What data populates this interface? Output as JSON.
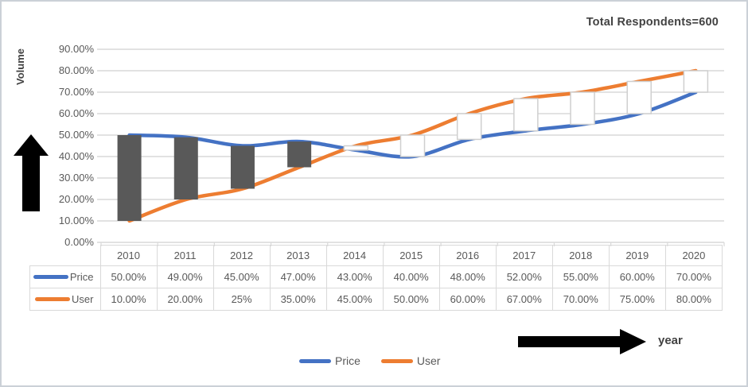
{
  "title": "Total Respondents=600",
  "y_axis_title": "Volume",
  "x_axis_title": "year",
  "chart_data": {
    "type": "line",
    "title": "Total Respondents=600",
    "xlabel": "year",
    "ylabel": "Volume",
    "categories": [
      "2010",
      "2011",
      "2012",
      "2013",
      "2014",
      "2015",
      "2016",
      "2017",
      "2018",
      "2019",
      "2020"
    ],
    "series": [
      {
        "name": "Price",
        "color": "#4472C4",
        "values": [
          50,
          49,
          45,
          47,
          43,
          40,
          48,
          52,
          55,
          60,
          70
        ]
      },
      {
        "name": "User",
        "color": "#ED7D31",
        "values": [
          10,
          20,
          25,
          35,
          45,
          50,
          60,
          67,
          70,
          75,
          80
        ]
      }
    ],
    "ylim": [
      0,
      90
    ],
    "ytick_step": 10,
    "ytick_format": "0.00%",
    "grid": "horizontal-only",
    "smooth_lines": true,
    "updown_bars": true,
    "legend_position": "bottom",
    "colors": {
      "gridline": "#d9d9d9",
      "down_bar_fill": "#595959",
      "up_bar_fill": "#ffffff",
      "up_bar_border": "#cfcfcf",
      "axis_text": "#595959",
      "arrow": "#000000"
    }
  },
  "data_table": {
    "columns": [
      "2010",
      "2011",
      "2012",
      "2013",
      "2014",
      "2015",
      "2016",
      "2017",
      "2018",
      "2019",
      "2020"
    ],
    "rows": [
      {
        "label": "Price",
        "color": "#4472C4",
        "values": [
          "50.00%",
          "49.00%",
          "45.00%",
          "47.00%",
          "43.00%",
          "40.00%",
          "48.00%",
          "52.00%",
          "55.00%",
          "60.00%",
          "70.00%"
        ]
      },
      {
        "label": "User",
        "color": "#ED7D31",
        "values": [
          "10.00%",
          "20.00%",
          "25%",
          "35.00%",
          "45.00%",
          "50.00%",
          "60.00%",
          "67.00%",
          "70.00%",
          "75.00%",
          "80.00%"
        ]
      }
    ]
  },
  "legend": {
    "items": [
      {
        "label": "Price",
        "color": "#4472C4"
      },
      {
        "label": "User",
        "color": "#ED7D31"
      }
    ]
  }
}
